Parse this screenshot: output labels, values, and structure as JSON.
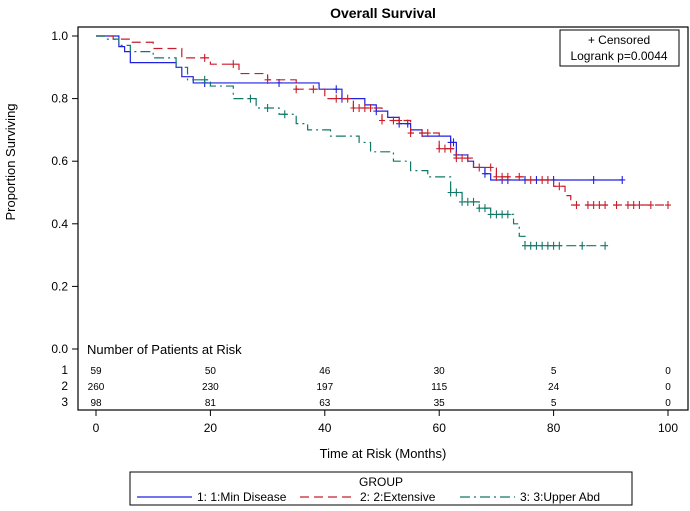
{
  "chart_data": {
    "type": "line",
    "title": "Overall Survival",
    "xlabel": "Time at Risk (Months)",
    "ylabel": "Proportion Surviving",
    "xlim": [
      0,
      100
    ],
    "ylim": [
      0,
      1
    ],
    "xticks": [
      "0",
      "20",
      "40",
      "60",
      "80",
      "100"
    ],
    "yticks": [
      "0.0",
      "0.2",
      "0.4",
      "0.6",
      "0.8",
      "1.0"
    ],
    "grid": false,
    "inset": {
      "line1": "+ Censored",
      "line2": "Logrank p=0.0044",
      "placement": "top-right"
    },
    "legend": {
      "title": "GROUP",
      "placement": "bottom",
      "entries": [
        "1: 1:Min Disease",
        "2: 2:Extensive",
        "3: 3:Upper Abd"
      ]
    },
    "risk_table": {
      "title": "Number of Patients at Risk",
      "times": [
        0,
        20,
        40,
        60,
        80,
        100
      ],
      "rows": [
        {
          "label": "1",
          "values": [
            "59",
            "50",
            "46",
            "30",
            "5",
            "0"
          ]
        },
        {
          "label": "2",
          "values": [
            "260",
            "230",
            "197",
            "115",
            "24",
            "0"
          ]
        },
        {
          "label": "3",
          "values": [
            "98",
            "81",
            "63",
            "35",
            "5",
            "0"
          ]
        }
      ]
    },
    "series": [
      {
        "name": "1: 1:Min Disease",
        "color": "#2020e0",
        "dash": "",
        "steps": [
          [
            0,
            1
          ],
          [
            4,
            0.966
          ],
          [
            5,
            0.95
          ],
          [
            6,
            0.915
          ],
          [
            14,
            0.9
          ],
          [
            15,
            0.87
          ],
          [
            17,
            0.85
          ],
          [
            39,
            0.83
          ],
          [
            43,
            0.8
          ],
          [
            47,
            0.78
          ],
          [
            49,
            0.76
          ],
          [
            51,
            0.74
          ],
          [
            53,
            0.72
          ],
          [
            55,
            0.7
          ],
          [
            57,
            0.68
          ],
          [
            62,
            0.66
          ],
          [
            63,
            0.62
          ],
          [
            65,
            0.6
          ],
          [
            66,
            0.58
          ],
          [
            68,
            0.56
          ],
          [
            69,
            0.54
          ],
          [
            92,
            0.54
          ]
        ],
        "censored": [
          19,
          32,
          42,
          43,
          49,
          53,
          54.5,
          62,
          62.5,
          63,
          68,
          71,
          72,
          75,
          77,
          80,
          87,
          92
        ]
      },
      {
        "name": "2: 2:Extensive",
        "color": "#c81e2a",
        "dash": "9,5",
        "steps": [
          [
            0,
            1
          ],
          [
            3,
            0.99
          ],
          [
            6,
            0.98
          ],
          [
            10,
            0.96
          ],
          [
            15,
            0.93
          ],
          [
            20,
            0.91
          ],
          [
            25,
            0.88
          ],
          [
            30,
            0.86
          ],
          [
            35,
            0.83
          ],
          [
            40,
            0.8
          ],
          [
            45,
            0.77
          ],
          [
            50,
            0.73
          ],
          [
            55,
            0.69
          ],
          [
            60,
            0.64
          ],
          [
            63,
            0.61
          ],
          [
            66,
            0.58
          ],
          [
            70,
            0.55
          ],
          [
            75,
            0.54
          ],
          [
            80,
            0.52
          ],
          [
            82,
            0.49
          ],
          [
            83,
            0.46
          ],
          [
            100,
            0.46
          ]
        ],
        "censored": [
          19,
          24,
          30,
          35,
          38,
          42,
          44,
          45,
          46,
          47,
          48,
          50,
          52,
          53,
          55,
          57,
          58,
          60,
          61,
          62,
          63,
          64,
          65,
          67,
          69,
          70,
          71,
          72,
          74,
          76,
          78,
          79,
          81,
          84,
          86,
          87,
          88,
          89,
          91,
          93,
          94,
          95,
          97,
          100
        ]
      },
      {
        "name": "3: 3:Upper Abd",
        "color": "#107868",
        "dash": "10,4,2,4",
        "steps": [
          [
            0,
            1
          ],
          [
            2,
            0.99
          ],
          [
            4,
            0.97
          ],
          [
            6,
            0.95
          ],
          [
            10,
            0.93
          ],
          [
            14,
            0.9
          ],
          [
            16,
            0.86
          ],
          [
            20,
            0.84
          ],
          [
            24,
            0.8
          ],
          [
            28,
            0.77
          ],
          [
            32,
            0.75
          ],
          [
            35,
            0.72
          ],
          [
            37,
            0.7
          ],
          [
            41,
            0.68
          ],
          [
            46,
            0.66
          ],
          [
            48,
            0.63
          ],
          [
            52,
            0.6
          ],
          [
            55,
            0.57
          ],
          [
            58,
            0.55
          ],
          [
            62,
            0.5
          ],
          [
            64,
            0.47
          ],
          [
            67,
            0.45
          ],
          [
            69,
            0.43
          ],
          [
            73,
            0.4
          ],
          [
            74,
            0.36
          ],
          [
            75,
            0.33
          ],
          [
            89,
            0.33
          ]
        ],
        "censored": [
          19,
          27,
          30,
          33,
          62,
          63,
          64,
          65,
          66,
          67,
          68,
          69,
          70,
          71,
          72,
          75,
          76,
          77,
          78,
          79,
          80,
          81,
          85,
          89
        ]
      }
    ]
  }
}
